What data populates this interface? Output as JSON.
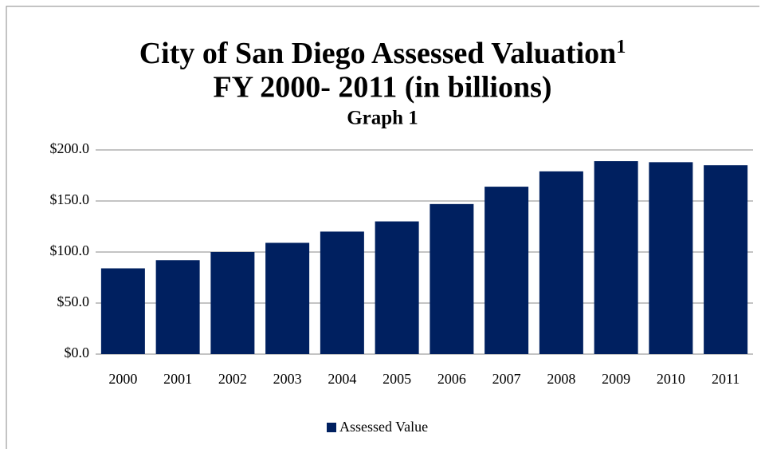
{
  "chart_data": {
    "type": "bar",
    "title": "City of San Diego Assessed Valuation",
    "title_footnote": "1",
    "title_line2": "FY 2000- 2011 (in billions)",
    "subtitle": "Graph 1",
    "categories": [
      "2000",
      "2001",
      "2002",
      "2003",
      "2004",
      "2005",
      "2006",
      "2007",
      "2008",
      "2009",
      "2010",
      "2011"
    ],
    "series": [
      {
        "name": "Assessed Value",
        "color": "#002060",
        "values": [
          84,
          92,
          100,
          109,
          120,
          130,
          147,
          164,
          179,
          189,
          188,
          185
        ]
      }
    ],
    "ylim": [
      0,
      200
    ],
    "yticks": [
      {
        "value": 0,
        "label": "$0.0"
      },
      {
        "value": 50,
        "label": "$50.0"
      },
      {
        "value": 100,
        "label": "$100.0"
      },
      {
        "value": 150,
        "label": "$150.0"
      },
      {
        "value": 200,
        "label": "$200.0"
      }
    ],
    "grid": true,
    "legend": "bottom"
  }
}
